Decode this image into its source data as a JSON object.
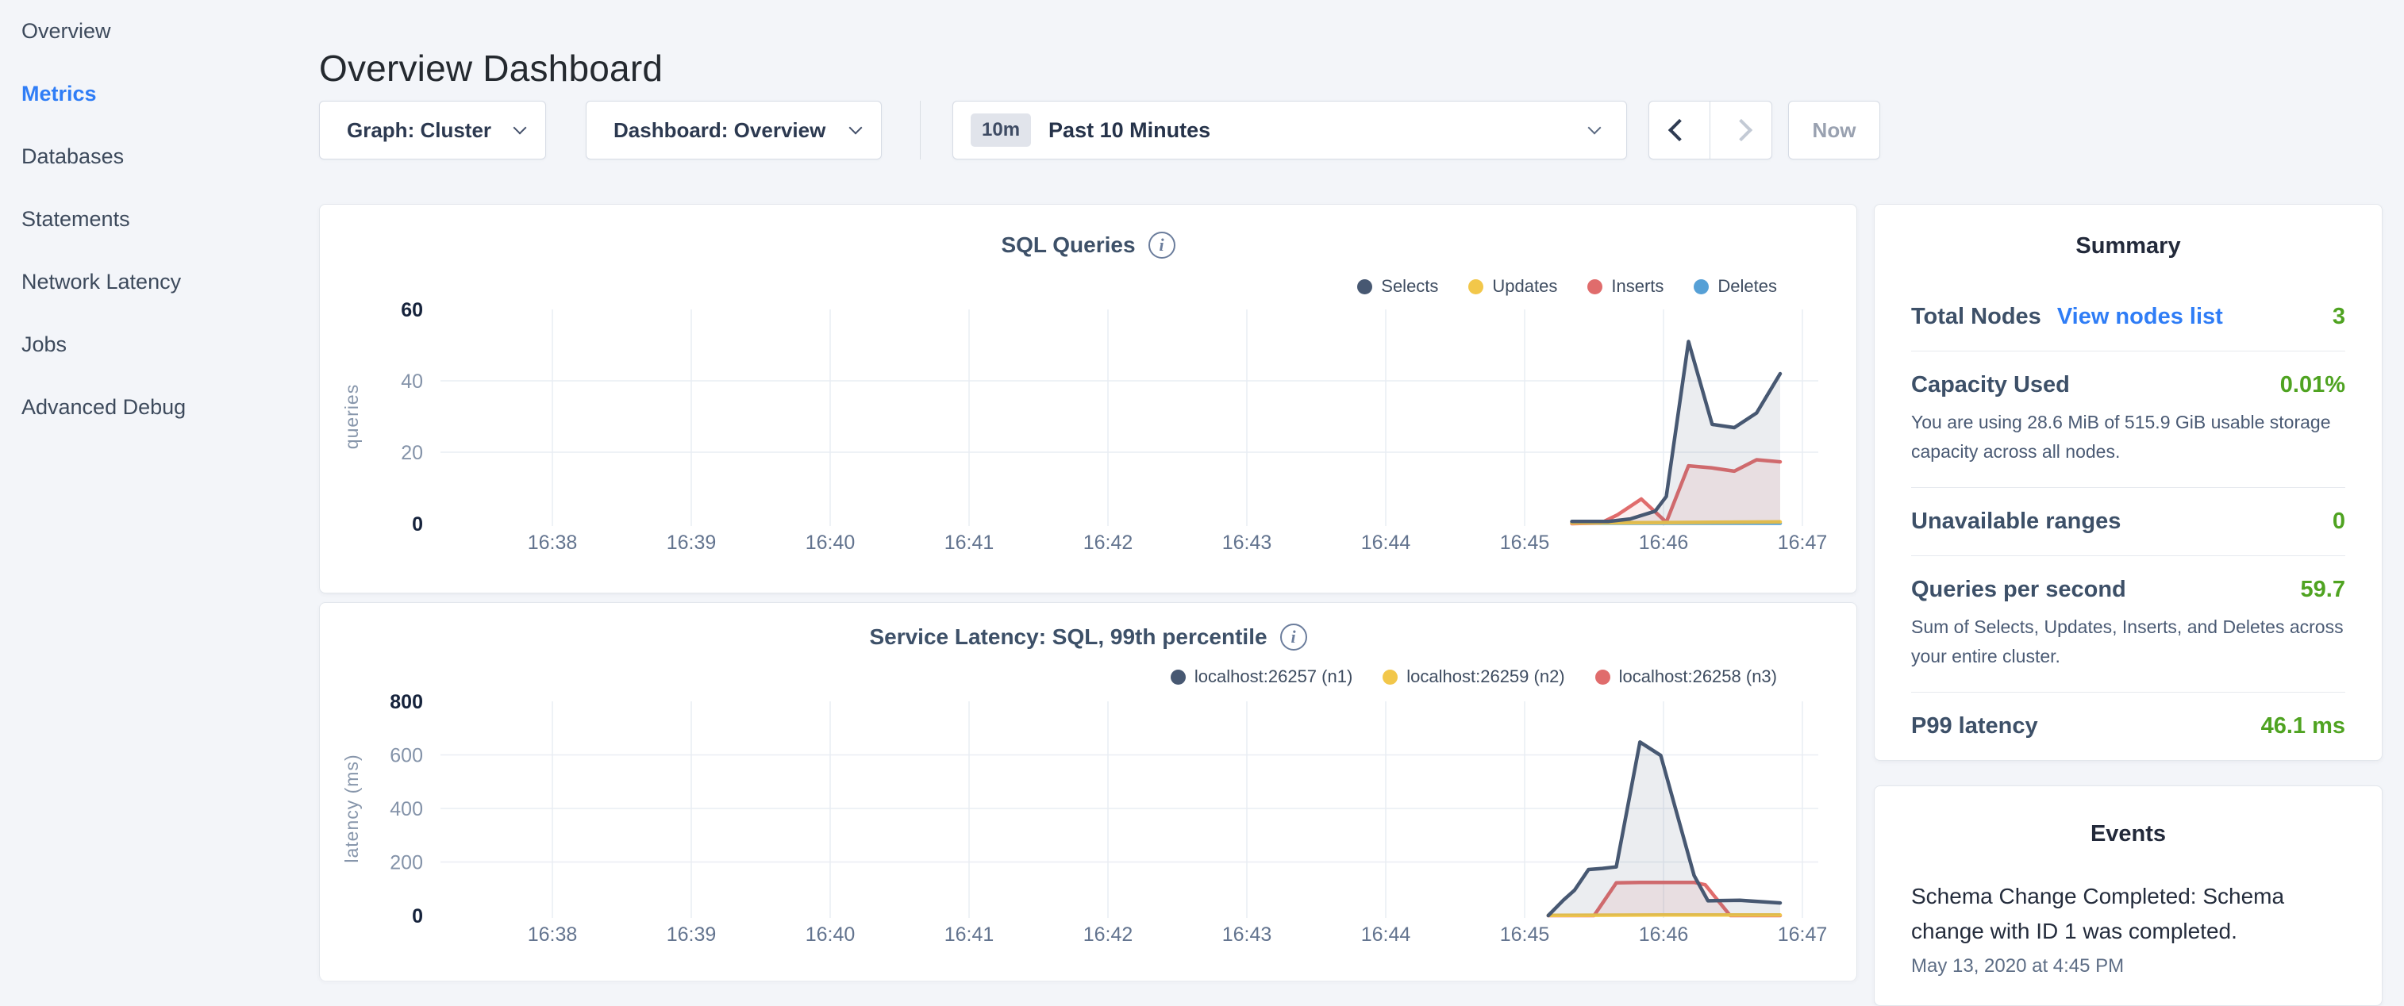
{
  "app": {
    "title": "Overview Dashboard"
  },
  "icons": {
    "info": "i"
  },
  "colors": {
    "accent_blue": "#2f7df6",
    "value_green": "#4fa321",
    "series_navy": "#475872",
    "series_yellow": "#f2c74a",
    "series_red": "#e06c6c",
    "series_blue": "#56a0d6"
  },
  "sidebar": {
    "items": [
      {
        "label": "Overview",
        "active": false
      },
      {
        "label": "Metrics",
        "active": true
      },
      {
        "label": "Databases",
        "active": false
      },
      {
        "label": "Statements",
        "active": false
      },
      {
        "label": "Network Latency",
        "active": false
      },
      {
        "label": "Jobs",
        "active": false
      },
      {
        "label": "Advanced Debug",
        "active": false
      }
    ]
  },
  "controls": {
    "graph_label": "Graph: Cluster",
    "dashboard_label": "Dashboard: Overview",
    "time_range_badge": "10m",
    "time_range_label": "Past 10 Minutes",
    "now_label": "Now"
  },
  "summary": {
    "title": "Summary",
    "rows": [
      {
        "label": "Total Nodes",
        "link": "View nodes list",
        "value": "3"
      },
      {
        "label": "Capacity Used",
        "value": "0.01%",
        "desc": "You are using 28.6 MiB of 515.9 GiB usable storage capacity across all nodes."
      },
      {
        "label": "Unavailable ranges",
        "value": "0"
      },
      {
        "label": "Queries per second",
        "value": "59.7",
        "desc": "Sum of Selects, Updates, Inserts, and Deletes across your entire cluster."
      },
      {
        "label": "P99 latency",
        "value": "46.1 ms"
      }
    ]
  },
  "events": {
    "title": "Events",
    "items": [
      {
        "message": "Schema Change Completed: Schema change with ID 1 was completed.",
        "timestamp": "May 13, 2020 at 4:45 PM"
      }
    ]
  },
  "chart_data": [
    {
      "type": "line",
      "title": "SQL Queries",
      "ylabel": "queries",
      "xlabel": "",
      "x_unit": "time of day; point x values are minutes after 16:00",
      "x_ticks": {
        "values": [
          38,
          39,
          40,
          41,
          42,
          43,
          44,
          45,
          46,
          47
        ],
        "labels": [
          "16:38",
          "16:39",
          "16:40",
          "16:41",
          "16:42",
          "16:43",
          "16:44",
          "16:45",
          "16:46",
          "16:47"
        ]
      },
      "ylim": [
        0,
        60
      ],
      "y_ticks": [
        0,
        20,
        40,
        60
      ],
      "grid": true,
      "legend_position": "top-right",
      "series": [
        {
          "name": "Selects",
          "color": "#475872",
          "points": [
            [
              45.34,
              0.6
            ],
            [
              45.6,
              0.6
            ],
            [
              45.76,
              1.3
            ],
            [
              45.94,
              3.5
            ],
            [
              46.02,
              7.6
            ],
            [
              46.18,
              51
            ],
            [
              46.35,
              27.8
            ],
            [
              46.51,
              26.9
            ],
            [
              46.67,
              31
            ],
            [
              46.84,
              42
            ]
          ]
        },
        {
          "name": "Updates",
          "color": "#f2c74a",
          "points": [
            [
              45.34,
              0.2
            ],
            [
              46.02,
              0.3
            ],
            [
              46.84,
              0.5
            ]
          ]
        },
        {
          "name": "Inserts",
          "color": "#e06c6c",
          "points": [
            [
              45.34,
              0
            ],
            [
              45.55,
              0.2
            ],
            [
              45.67,
              2.5
            ],
            [
              45.84,
              6.9
            ],
            [
              46.02,
              0.4
            ],
            [
              46.18,
              16.2
            ],
            [
              46.35,
              15.6
            ],
            [
              46.51,
              14.7
            ],
            [
              46.67,
              17.9
            ],
            [
              46.84,
              17.3
            ]
          ]
        },
        {
          "name": "Deletes",
          "color": "#56a0d6",
          "points": [
            [
              45.34,
              0.1
            ],
            [
              46.84,
              0.1
            ]
          ]
        }
      ]
    },
    {
      "type": "line",
      "title": "Service Latency: SQL, 99th percentile",
      "ylabel": "latency (ms)",
      "xlabel": "",
      "x_unit": "time of day; point x values are minutes after 16:00",
      "x_ticks": {
        "values": [
          38,
          39,
          40,
          41,
          42,
          43,
          44,
          45,
          46,
          47
        ],
        "labels": [
          "16:38",
          "16:39",
          "16:40",
          "16:41",
          "16:42",
          "16:43",
          "16:44",
          "16:45",
          "16:46",
          "16:47"
        ]
      },
      "ylim": [
        0,
        800
      ],
      "y_ticks": [
        0,
        200,
        400,
        600,
        800
      ],
      "grid": true,
      "legend_position": "top-right",
      "series": [
        {
          "name": "localhost:26257 (n1)",
          "color": "#475872",
          "points": [
            [
              45.17,
              0
            ],
            [
              45.28,
              58
            ],
            [
              45.36,
              95
            ],
            [
              45.46,
              172
            ],
            [
              45.56,
              176
            ],
            [
              45.66,
              182
            ],
            [
              45.83,
              648
            ],
            [
              45.98,
              598
            ],
            [
              46.22,
              150
            ],
            [
              46.32,
              55
            ],
            [
              46.55,
              57
            ],
            [
              46.84,
              47
            ]
          ]
        },
        {
          "name": "localhost:26259 (n2)",
          "color": "#f2c74a",
          "points": [
            [
              45.17,
              1
            ],
            [
              46.0,
              2
            ],
            [
              46.84,
              2
            ]
          ]
        },
        {
          "name": "localhost:26258 (n3)",
          "color": "#e06c6c",
          "points": [
            [
              45.17,
              0
            ],
            [
              45.5,
              0
            ],
            [
              45.66,
              122
            ],
            [
              45.83,
              124
            ],
            [
              46.22,
              124
            ],
            [
              46.3,
              115
            ],
            [
              46.48,
              0
            ],
            [
              46.84,
              0
            ]
          ]
        }
      ]
    }
  ]
}
